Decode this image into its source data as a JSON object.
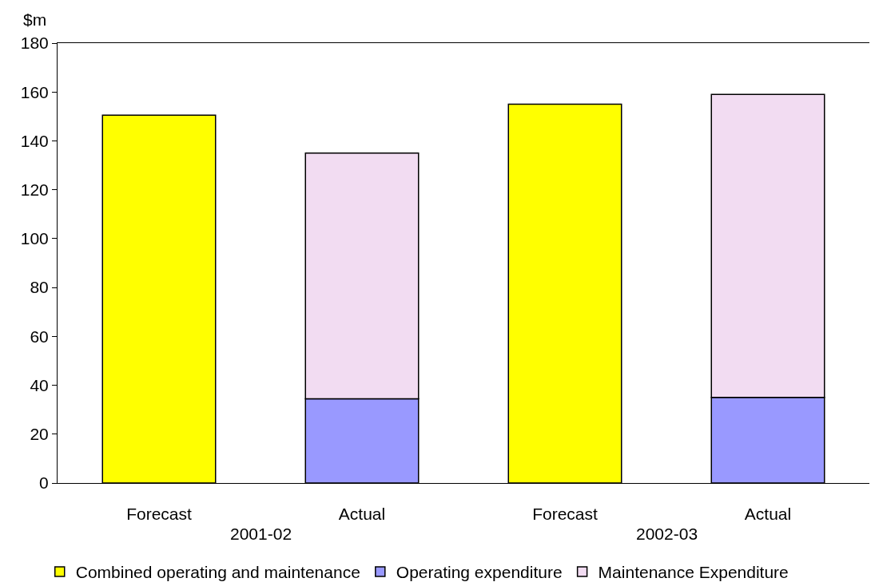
{
  "chart_data": {
    "type": "bar",
    "stacked": true,
    "ylabel": "$m",
    "categories": [
      "Forecast",
      "Actual",
      "Forecast",
      "Actual"
    ],
    "annotations": [
      "2001-02",
      "2002-03"
    ],
    "series": [
      {
        "name": "Combined operating and maintenance",
        "color": "#ffff00",
        "values": [
          150.5,
          null,
          155,
          null
        ]
      },
      {
        "name": "Operating expenditure",
        "color": "#9999ff",
        "values": [
          null,
          34.5,
          null,
          35
        ]
      },
      {
        "name": "Maintenance Expenditure",
        "color": "#f2dcf2",
        "values": [
          null,
          100.5,
          null,
          124
        ]
      }
    ],
    "ylim": [
      0,
      180
    ],
    "yticks": [
      0,
      20,
      40,
      60,
      80,
      100,
      120,
      140,
      160,
      180
    ],
    "grid": false,
    "legend": "bottom"
  }
}
